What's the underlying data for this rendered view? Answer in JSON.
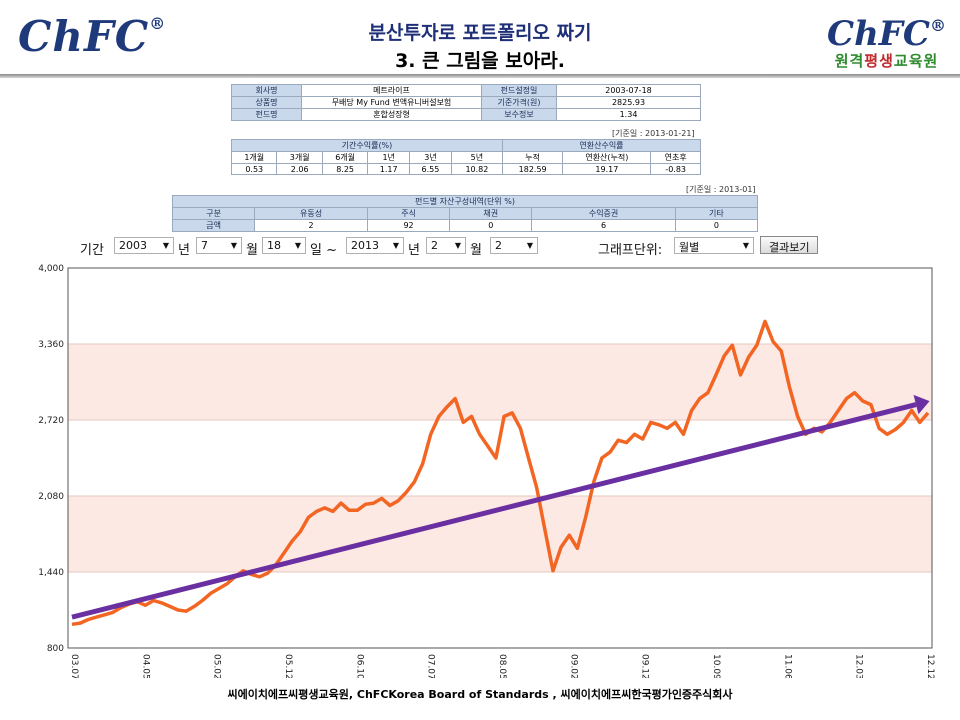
{
  "header": {
    "logo_left": "ChFC",
    "logo_right": "ChFC",
    "logo_right_sub_1": "원격",
    "logo_right_sub_2": "평생",
    "logo_right_sub_3": "교육원",
    "title_1": "분산투자로 포트폴리오 짜기",
    "title_2": "3. 큰 그림을 보아라."
  },
  "fund_info": {
    "rows": [
      [
        "회사명",
        "메트라이프",
        "펀드설정일",
        "2003-07-18"
      ],
      [
        "상품명",
        "무배당 My Fund 변액유니버설보험",
        "기준가격(원)",
        "2825.93"
      ],
      [
        "펀드명",
        "혼합성장형",
        "보수정보",
        "1.34"
      ]
    ]
  },
  "returns": {
    "ref_date": "[기준일 : 2013-01-21]",
    "group_period": "기간수익률(%)",
    "group_annual": "연환산수익률",
    "headers": [
      "1개월",
      "3개월",
      "6개월",
      "1년",
      "3년",
      "5년",
      "누적",
      "연환산(누적)",
      "연초후"
    ],
    "values": [
      "0.53",
      "2.06",
      "8.25",
      "1.17",
      "6.55",
      "10.82",
      "182.59",
      "19.17",
      "-0.83"
    ]
  },
  "assets": {
    "ref_date": "[기준일 : 2013-01]",
    "title": "펀드별 자산구성내역(단위 %)",
    "headers": [
      "구분",
      "유동성",
      "주식",
      "채권",
      "수익증권",
      "기타"
    ],
    "values": [
      "금액",
      "2",
      "92",
      "0",
      "6",
      "0"
    ]
  },
  "controls": {
    "period_label": "기간",
    "start_year": "2003",
    "year_unit": "년",
    "start_month": "7",
    "month_unit": "월",
    "start_day": "18",
    "day_unit": "일 ~",
    "end_year": "2013",
    "end_month": "2",
    "end_day": "2",
    "graph_unit_label": "그래프단위:",
    "graph_unit": "월별",
    "result_button": "결과보기"
  },
  "chart_data": {
    "type": "line",
    "ylim": [
      800,
      4000
    ],
    "y_ticks": [
      "4,000",
      "3,360",
      "2,720",
      "2,080",
      "1,440",
      "800"
    ],
    "x_ticks": [
      "03.07",
      "04.05",
      "05.02",
      "05.12",
      "06.10",
      "07.07",
      "08.05",
      "09.02",
      "09.12",
      "10.09",
      "11.06",
      "12.03",
      "12.12"
    ],
    "line_color": "#f26522",
    "trend_color": "#6a2fa0",
    "band_color": "#fde9e4",
    "series": [
      {
        "values": [
          1000,
          1010,
          1040,
          1060,
          1080,
          1100,
          1140,
          1170,
          1190,
          1160,
          1200,
          1180,
          1150,
          1120,
          1110,
          1150,
          1200,
          1260,
          1300,
          1340,
          1400,
          1450,
          1420,
          1400,
          1430,
          1500,
          1600,
          1700,
          1780,
          1900,
          1950,
          1980,
          1950,
          2020,
          1960,
          1960,
          2010,
          2020,
          2060,
          2000,
          2040,
          2110,
          2200,
          2350,
          2600,
          2750,
          2830,
          2900,
          2700,
          2750,
          2600,
          2500,
          2400,
          2750,
          2780,
          2650,
          2400,
          2150,
          1800,
          1450,
          1650,
          1750,
          1640,
          1900,
          2200,
          2400,
          2450,
          2550,
          2530,
          2600,
          2560,
          2700,
          2680,
          2650,
          2700,
          2600,
          2800,
          2900,
          2950,
          3100,
          3260,
          3350,
          3100,
          3250,
          3350,
          3550,
          3380,
          3300,
          3000,
          2750,
          2600,
          2650,
          2620,
          2700,
          2800,
          2900,
          2950,
          2880,
          2850,
          2650,
          2600,
          2640,
          2700,
          2800,
          2700,
          2780
        ]
      }
    ],
    "trend": {
      "start": 1060,
      "end": 2850
    }
  },
  "footer": "씨에이치에프씨평생교육원, ChFCKorea Board of Standards , 씨에이치에프씨한국평가인증주식회사"
}
